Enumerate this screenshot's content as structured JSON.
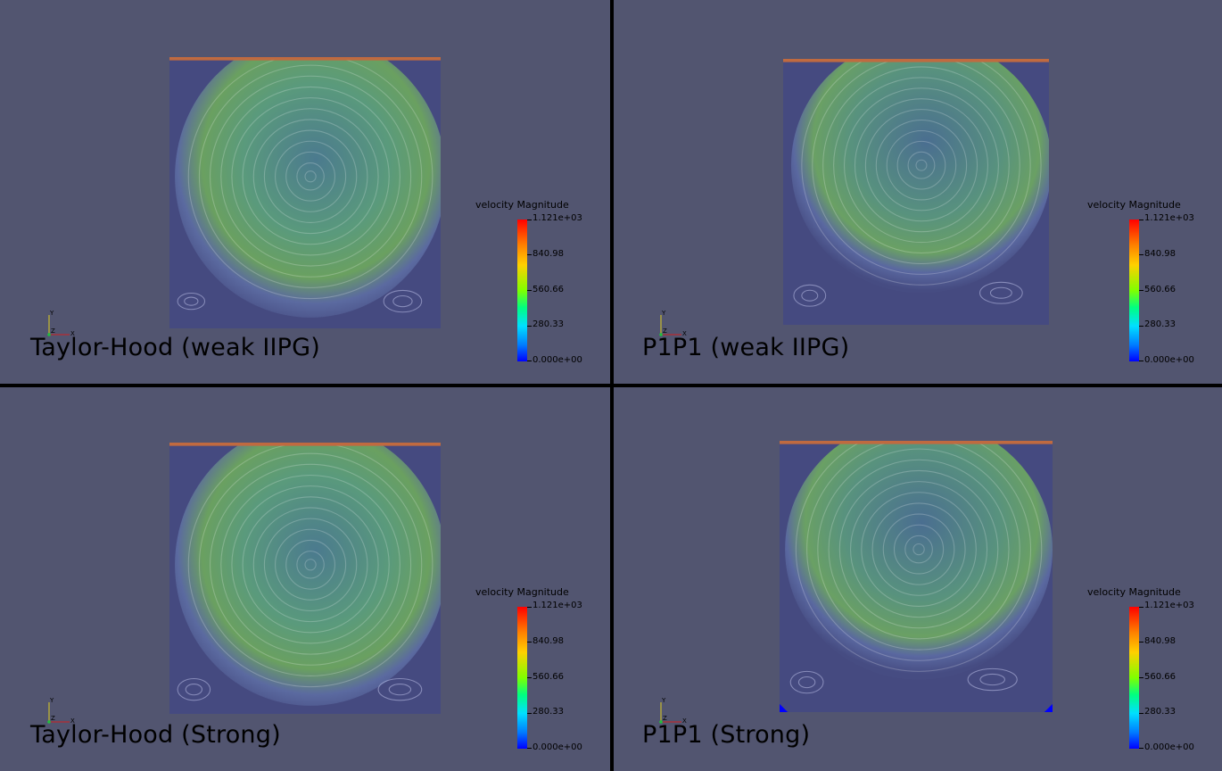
{
  "panels": [
    {
      "title": "Taylor-Hood (weak IIPG)"
    },
    {
      "title": "P1P1 (weak IIPG)"
    },
    {
      "title": "Taylor-Hood (Strong)"
    },
    {
      "title": "P1P1 (Strong)"
    }
  ],
  "colorbar": {
    "label": "velocity Magnitude",
    "ticks": [
      "1.121e+03",
      "840.98",
      "560.66",
      "280.33",
      "0.000e+00"
    ]
  },
  "axes": {
    "y": "Y",
    "z": "Z",
    "x": "X"
  },
  "colors": {
    "background": "#525570",
    "divider": "#000000"
  }
}
